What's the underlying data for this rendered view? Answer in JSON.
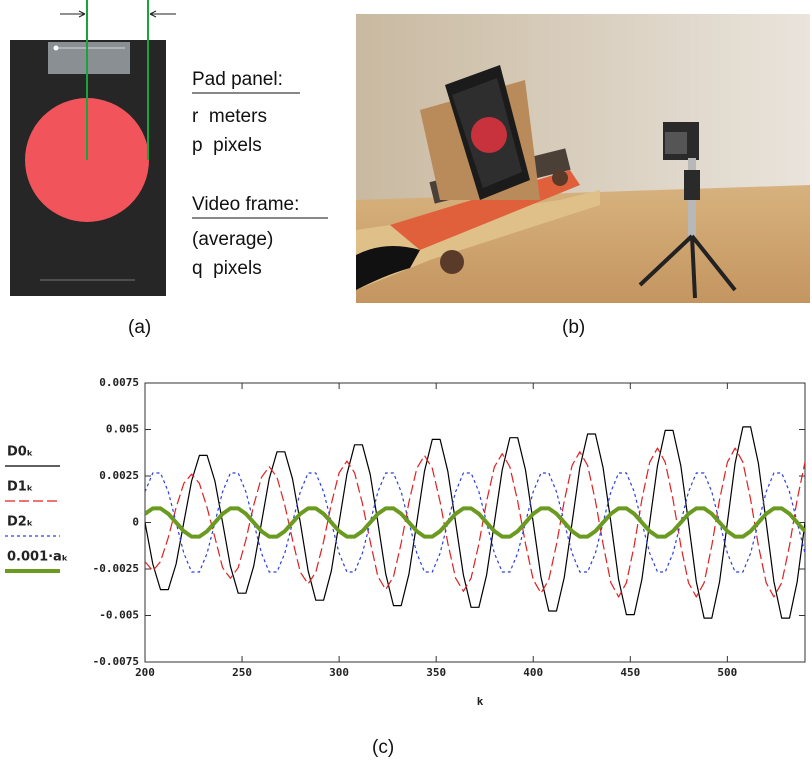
{
  "figure": {
    "labels": [
      "(a)",
      "(b)",
      "(c)"
    ],
    "pad_panel": {
      "heading": "Pad panel:",
      "lines": [
        "r  meters",
        "p  pixels"
      ]
    },
    "video_frame": {
      "heading": "Video frame:",
      "lines": [
        "(average)",
        "q  pixels"
      ]
    }
  },
  "chart_data": {
    "type": "line",
    "xlabel": "k",
    "legend": "left",
    "xlim": [
      200,
      540
    ],
    "xticks": [
      200,
      250,
      300,
      350,
      400,
      450,
      500
    ],
    "ylim": [
      -0.0075,
      0.0075
    ],
    "yticks": [
      -0.0075,
      -0.005,
      -0.0025,
      0,
      0.0025,
      0.005,
      0.0075
    ],
    "x": [
      200,
      204,
      208,
      212,
      216,
      220,
      224,
      228,
      232,
      236,
      240,
      244,
      248,
      252,
      256,
      260,
      264,
      268,
      272,
      276,
      280,
      284,
      288,
      292,
      296,
      300,
      304,
      308,
      312,
      316,
      320,
      324,
      328,
      332,
      336,
      340,
      344,
      348,
      352,
      356,
      360,
      364,
      368,
      372,
      376,
      380,
      384,
      388,
      392,
      396,
      400,
      404,
      408,
      412,
      416,
      420,
      424,
      428,
      432,
      436,
      440,
      444,
      448,
      452,
      456,
      460,
      464,
      468,
      472,
      476,
      480,
      484,
      488,
      492,
      496,
      500,
      504,
      508,
      512,
      516,
      520,
      524,
      528,
      532,
      536,
      540
    ],
    "series": [
      {
        "name": "D0ₖ",
        "color": "#000000",
        "dash": "none",
        "width": 1.2,
        "values": [
          0,
          -0.00223,
          -0.00361,
          -0.00361,
          -0.00223,
          0,
          0.00223,
          0.00361,
          0.00361,
          0.00223,
          0,
          -0.00235,
          -0.0038,
          -0.0038,
          -0.00235,
          0,
          0.00235,
          0.0038,
          0.0038,
          0.00235,
          0,
          -0.00259,
          -0.00418,
          -0.00418,
          -0.00259,
          0,
          0.00259,
          0.00418,
          0.00418,
          0.00259,
          0,
          -0.00276,
          -0.00447,
          -0.00447,
          -0.00276,
          0,
          0.00276,
          0.00447,
          0.00447,
          0.00276,
          0,
          -0.00282,
          -0.00456,
          -0.00456,
          -0.00282,
          0,
          0.00282,
          0.00456,
          0.00456,
          0.00282,
          0,
          -0.00294,
          -0.00476,
          -0.00476,
          -0.00294,
          0,
          0.00294,
          0.00476,
          0.00476,
          0.00294,
          0,
          -0.00306,
          -0.00495,
          -0.00495,
          -0.00306,
          0,
          0.00306,
          0.00495,
          0.00495,
          0.00306,
          0,
          -0.00318,
          -0.00514,
          -0.00514,
          -0.00318,
          0,
          0.00318,
          0.00514,
          0.00514,
          0.00318,
          0,
          -0.00318,
          -0.00514,
          -0.00514,
          -0.00318,
          0
        ]
      },
      {
        "name": "D1ₖ",
        "color": "#e02020",
        "dash": "10,4",
        "width": 1.2,
        "values": [
          -0.0021,
          -0.0026,
          -0.0021,
          -0.0008,
          0.0008,
          0.0021,
          0.0026,
          0.0021,
          0.0008,
          -0.0008,
          -0.00243,
          -0.003,
          -0.00243,
          -0.00093,
          0.00093,
          0.00243,
          0.003,
          0.00243,
          0.00093,
          -0.00093,
          -0.00267,
          -0.0033,
          -0.00267,
          -0.00102,
          0.00102,
          0.00267,
          0.0033,
          0.00267,
          0.00102,
          -0.00102,
          -0.00291,
          -0.0036,
          -0.00291,
          -0.00111,
          0.00111,
          0.00291,
          0.0036,
          0.00291,
          0.00111,
          -0.00111,
          -0.00299,
          -0.0037,
          -0.00299,
          -0.00114,
          0.00114,
          0.00299,
          0.0037,
          0.00299,
          0.00114,
          -0.00114,
          -0.00307,
          -0.0038,
          -0.00307,
          -0.00117,
          0.00117,
          0.00307,
          0.0038,
          0.00307,
          0.00117,
          -0.00117,
          -0.00324,
          -0.004,
          -0.00324,
          -0.00124,
          0.00124,
          0.00324,
          0.004,
          0.00324,
          0.00124,
          -0.00124,
          -0.00324,
          -0.004,
          -0.00324,
          -0.00124,
          0.00124,
          0.00324,
          0.004,
          0.00324,
          0.00124,
          -0.00124,
          -0.00324,
          -0.004,
          -0.00324,
          -0.00124,
          0.00124,
          0.00324
        ]
      },
      {
        "name": "D2ₖ",
        "color": "#2a3fe0",
        "dash": "3,3",
        "width": 1.2,
        "values": [
          0.00165,
          0.00266,
          0.00266,
          0.00165,
          0,
          -0.00165,
          -0.00266,
          -0.00266,
          -0.00165,
          0,
          0.00165,
          0.00266,
          0.00266,
          0.00165,
          0,
          -0.00165,
          -0.00266,
          -0.00266,
          -0.00165,
          0,
          0.00165,
          0.00266,
          0.00266,
          0.00165,
          0,
          -0.00165,
          -0.00266,
          -0.00266,
          -0.00165,
          0,
          0.00165,
          0.00266,
          0.00266,
          0.00165,
          0,
          -0.00165,
          -0.00266,
          -0.00266,
          -0.00165,
          0,
          0.00165,
          0.00266,
          0.00266,
          0.00165,
          0,
          -0.00165,
          -0.00266,
          -0.00266,
          -0.00165,
          0,
          0.00165,
          0.00266,
          0.00266,
          0.00165,
          0,
          -0.00165,
          -0.00266,
          -0.00266,
          -0.00165,
          0,
          0.00165,
          0.00266,
          0.00266,
          0.00165,
          0,
          -0.00165,
          -0.00266,
          -0.00266,
          -0.00165,
          0,
          0.00165,
          0.00266,
          0.00266,
          0.00165,
          0,
          -0.00165,
          -0.00266,
          -0.00266,
          -0.00165,
          0,
          0.00165,
          0.00266,
          0.00266,
          0.00165,
          0,
          -0.00165
        ]
      },
      {
        "name": "0.001·aₖ",
        "color": "#6a9a1f",
        "dash": "none",
        "width": 4,
        "values": [
          0.00047,
          0.00076,
          0.00076,
          0.00047,
          0,
          -0.00047,
          -0.00076,
          -0.00076,
          -0.00047,
          0,
          0.00047,
          0.00076,
          0.00076,
          0.00047,
          0,
          -0.00047,
          -0.00076,
          -0.00076,
          -0.00047,
          0,
          0.00047,
          0.00076,
          0.00076,
          0.00047,
          0,
          -0.00047,
          -0.00076,
          -0.00076,
          -0.00047,
          0,
          0.00047,
          0.00076,
          0.00076,
          0.00047,
          0,
          -0.00047,
          -0.00076,
          -0.00076,
          -0.00047,
          0,
          0.00047,
          0.00076,
          0.00076,
          0.00047,
          0,
          -0.00047,
          -0.00076,
          -0.00076,
          -0.00047,
          0,
          0.00047,
          0.00076,
          0.00076,
          0.00047,
          0,
          -0.00047,
          -0.00076,
          -0.00076,
          -0.00047,
          0,
          0.00047,
          0.00076,
          0.00076,
          0.00047,
          0,
          -0.00047,
          -0.00076,
          -0.00076,
          -0.00047,
          0,
          0.00047,
          0.00076,
          0.00076,
          0.00047,
          0,
          -0.00047,
          -0.00076,
          -0.00076,
          -0.00047,
          0,
          0.00047,
          0.00076,
          0.00076,
          0.00047,
          0,
          -0.00047
        ]
      }
    ]
  }
}
